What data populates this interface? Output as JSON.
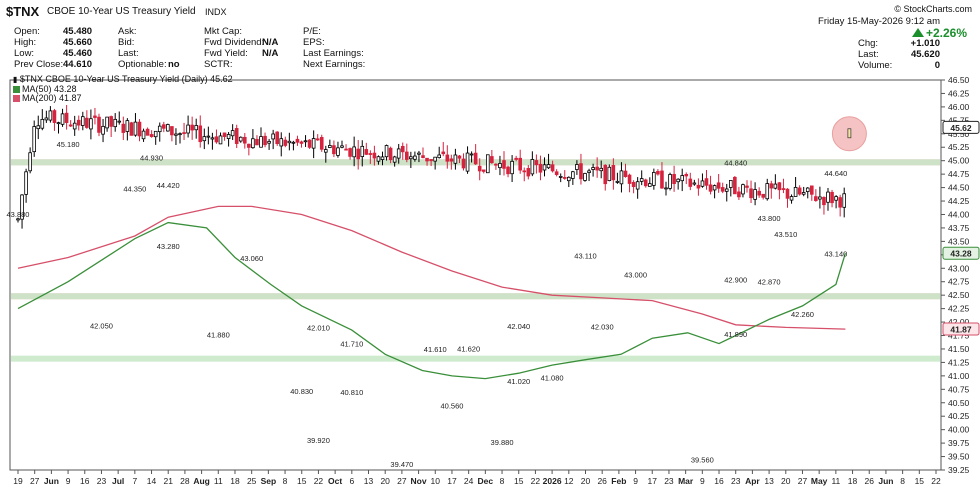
{
  "header": {
    "symbol": "$TNX",
    "name": "CBOE 10-Year US Treasury Yield",
    "exchange": "INDX",
    "source": "© StockCharts.com",
    "date": "Friday  15-May-2026  9:12 am",
    "quote": [
      {
        "label": "Open:",
        "value": "45.480"
      },
      {
        "label": "High:",
        "value": "45.660"
      },
      {
        "label": "Low:",
        "value": "45.460"
      },
      {
        "label": "Prev Close:",
        "value": "44.610"
      }
    ],
    "bidask": [
      {
        "label": "Ask:",
        "value": ""
      },
      {
        "label": "Bid:",
        "value": ""
      },
      {
        "label": "Last:",
        "value": ""
      },
      {
        "label": "Optionable:",
        "value": "no"
      }
    ],
    "fund": [
      {
        "label": "Mkt Cap:",
        "value": ""
      },
      {
        "label": "Fwd Dividend:",
        "value": "N/A"
      },
      {
        "label": "Fwd Yield:",
        "value": "N/A"
      },
      {
        "label": "SCTR:",
        "value": ""
      }
    ],
    "earn": [
      "P/E:",
      "EPS:",
      "Last Earnings:",
      "Next Earnings:"
    ],
    "change_pct": "+2.26%",
    "right": [
      {
        "label": "Chg:",
        "value": "+1.010"
      },
      {
        "label": "Last:",
        "value": "45.620"
      },
      {
        "label": "Volume:",
        "value": "0"
      }
    ]
  },
  "legend": {
    "main": "$TNX CBOE 10-Year US Treasury Yield (Daily) 45.62",
    "ma50": "MA(50) 43.28",
    "ma200": "MA(200) 41.87"
  },
  "colors": {
    "up": "#000000",
    "down": "#d6233e",
    "ma50": "#3a8f3a",
    "ma200": "#d6506a",
    "hband": "#f2b8bf",
    "gband": "#c6e8c6"
  },
  "chart_data": {
    "type": "candlestick",
    "ylim": [
      39.25,
      46.5
    ],
    "y_ticks": [
      "39.25",
      "39.50",
      "39.75",
      "40.00",
      "40.25",
      "40.50",
      "40.75",
      "41.00",
      "41.25",
      "41.50",
      "41.75",
      "42.00",
      "42.25",
      "42.50",
      "42.75",
      "43.00",
      "43.25",
      "43.50",
      "43.75",
      "44.00",
      "44.25",
      "44.50",
      "44.75",
      "45.00",
      "45.25",
      "45.50",
      "45.75",
      "46.00",
      "46.25",
      "46.50"
    ],
    "x_ticks": [
      "19",
      "27",
      "Jun",
      "9",
      "16",
      "23",
      "Jul",
      "7",
      "14",
      "21",
      "28",
      "Aug",
      "11",
      "18",
      "25",
      "Sep",
      "8",
      "15",
      "22",
      "Oct",
      "6",
      "13",
      "20",
      "27",
      "Nov",
      "10",
      "17",
      "24",
      "Dec",
      "8",
      "15",
      "22",
      "2026",
      "12",
      "20",
      "26",
      "Feb",
      "9",
      "17",
      "23",
      "Mar",
      "9",
      "16",
      "23",
      "Apr",
      "13",
      "20",
      "27",
      "May",
      "11",
      "18",
      "26",
      "Jun",
      "8",
      "15",
      "22"
    ],
    "bold_ticks": [
      "Jun",
      "Jul",
      "Aug",
      "Sep",
      "Oct",
      "Nov",
      "Dec",
      "2026",
      "Feb",
      "Mar",
      "Apr",
      "May",
      "Jun"
    ],
    "last_close": "45.62",
    "ma50_last": "43.28",
    "ma200_last": "41.87",
    "horizontal_lines": [
      {
        "value": 44.97,
        "color": "red"
      },
      {
        "value": 42.48,
        "color": "red"
      },
      {
        "value": 42.48,
        "color": "green"
      },
      {
        "value": 41.32,
        "color": "green"
      },
      {
        "value": 44.97,
        "color": "green"
      }
    ],
    "price_labels": [
      {
        "text": "45.180",
        "x": "Jun 9",
        "y": 45.18
      },
      {
        "text": "43.880",
        "x": "May 19",
        "y": 43.88
      },
      {
        "text": "42.050",
        "x": "Jun 23",
        "y": 42.05
      },
      {
        "text": "44.930",
        "x": "Jul 14",
        "y": 44.93
      },
      {
        "text": "44.350",
        "x": "Jul 7",
        "y": 44.35
      },
      {
        "text": "44.420",
        "x": "Jul 21",
        "y": 44.42
      },
      {
        "text": "43.280",
        "x": "Jul 21",
        "y": 43.28
      },
      {
        "text": "43.060",
        "x": "Aug 25",
        "y": 43.06
      },
      {
        "text": "41.880",
        "x": "Aug 11",
        "y": 41.88
      },
      {
        "text": "42.010",
        "x": "Sep 22",
        "y": 42.01
      },
      {
        "text": "41.710",
        "x": "Oct 6",
        "y": 41.71
      },
      {
        "text": "40.830",
        "x": "Sep 15",
        "y": 40.83
      },
      {
        "text": "40.810",
        "x": "Oct 6",
        "y": 40.81
      },
      {
        "text": "39.920",
        "x": "Sep 22",
        "y": 39.92
      },
      {
        "text": "39.470",
        "x": "Oct 27",
        "y": 39.47
      },
      {
        "text": "41.610",
        "x": "Nov 10",
        "y": 41.61
      },
      {
        "text": "41.620",
        "x": "Nov 24",
        "y": 41.62
      },
      {
        "text": "40.560",
        "x": "Nov 17",
        "y": 40.56
      },
      {
        "text": "39.880",
        "x": "Dec 8",
        "y": 39.88
      },
      {
        "text": "42.040",
        "x": "Dec 15",
        "y": 42.04
      },
      {
        "text": "41.020",
        "x": "Dec 15",
        "y": 41.02
      },
      {
        "text": "41.080",
        "x": "2026",
        "y": 41.08
      },
      {
        "text": "43.110",
        "x": "Jan 20",
        "y": 43.11
      },
      {
        "text": "43.000",
        "x": "Feb 9",
        "y": 43.0
      },
      {
        "text": "42.030",
        "x": "Jan 26",
        "y": 42.03
      },
      {
        "text": "39.560",
        "x": "Mar 9",
        "y": 39.56
      },
      {
        "text": "44.840",
        "x": "Mar 23",
        "y": 44.84
      },
      {
        "text": "42.900",
        "x": "Mar 23",
        "y": 42.9
      },
      {
        "text": "41.890",
        "x": "Mar 23",
        "y": 41.89
      },
      {
        "text": "43.800",
        "x": "Apr 13",
        "y": 43.8
      },
      {
        "text": "43.510",
        "x": "Apr 20",
        "y": 43.51
      },
      {
        "text": "42.870",
        "x": "Apr 13",
        "y": 42.87
      },
      {
        "text": "42.260",
        "x": "Apr 27",
        "y": 42.26
      },
      {
        "text": "44.640",
        "x": "May 11",
        "y": 44.64
      },
      {
        "text": "43.140",
        "x": "May 11",
        "y": 43.14
      }
    ],
    "pivots": [
      [
        "May 19",
        43.9
      ],
      [
        "May 27",
        45.8
      ],
      [
        "Jun 2",
        44.2
      ],
      [
        "Jun 9",
        45.15
      ],
      [
        "Jun 16",
        43.3
      ],
      [
        "Jun 23",
        42.1
      ],
      [
        "Jun 30",
        43.9
      ],
      [
        "Jul 7",
        44.4
      ],
      [
        "Jul 14",
        44.9
      ],
      [
        "Jul 21",
        43.4
      ],
      [
        "Jul 28",
        44.0
      ],
      [
        "Aug 4",
        42.0
      ],
      [
        "Aug 11",
        42.9
      ],
      [
        "Aug 18",
        43.1
      ],
      [
        "Aug 25",
        42.9
      ],
      [
        "Sep 2",
        41.9
      ],
      [
        "Sep 8",
        40.3
      ],
      [
        "Sep 15",
        40.0
      ],
      [
        "Sep 22",
        41.4
      ],
      [
        "Sep 29",
        41.8
      ],
      [
        "Oct 6",
        40.9
      ],
      [
        "Oct 13",
        40.2
      ],
      [
        "Oct 20",
        39.6
      ],
      [
        "Oct 27",
        39.7
      ],
      [
        "Nov 3",
        41.5
      ],
      [
        "Nov 10",
        41.0
      ],
      [
        "Nov 17",
        40.6
      ],
      [
        "Nov 24",
        41.6
      ],
      [
        "Dec 1",
        40.1
      ],
      [
        "Dec 8",
        40.8
      ],
      [
        "Dec 15",
        41.9
      ],
      [
        "Dec 22",
        41.3
      ],
      [
        "2026",
        41.6
      ],
      [
        "Jan 12",
        41.5
      ],
      [
        "Jan 20",
        42.3
      ],
      [
        "Jan 26",
        43.0
      ],
      [
        "Feb 2",
        42.4
      ],
      [
        "Feb 9",
        42.6
      ],
      [
        "Feb 17",
        41.6
      ],
      [
        "Feb 23",
        40.8
      ],
      [
        "Mar 2",
        39.7
      ],
      [
        "Mar 9",
        40.8
      ],
      [
        "Mar 16",
        41.6
      ],
      [
        "Mar 23",
        44.5
      ],
      [
        "Apr 6",
        43.2
      ],
      [
        "Apr 13",
        43.7
      ],
      [
        "Apr 20",
        43.0
      ],
      [
        "Apr 27",
        42.5
      ],
      [
        "May 4",
        44.0
      ],
      [
        "May 11",
        44.9
      ],
      [
        "May 15",
        45.62
      ]
    ],
    "ma50": [
      [
        "May 19",
        42.25
      ],
      [
        "Jun 9",
        42.75
      ],
      [
        "Jun 23",
        43.15
      ],
      [
        "Jul 7",
        43.55
      ],
      [
        "Jul 21",
        43.85
      ],
      [
        "Aug 4",
        43.75
      ],
      [
        "Aug 18",
        43.2
      ],
      [
        "Sep 2",
        42.7
      ],
      [
        "Sep 15",
        42.3
      ],
      [
        "Oct 6",
        41.85
      ],
      [
        "Oct 20",
        41.4
      ],
      [
        "Nov 3",
        41.1
      ],
      [
        "Nov 17",
        41.0
      ],
      [
        "Dec 1",
        40.95
      ],
      [
        "Dec 15",
        41.05
      ],
      [
        "2026",
        41.2
      ],
      [
        "Jan 20",
        41.3
      ],
      [
        "Feb 2",
        41.4
      ],
      [
        "Feb 17",
        41.7
      ],
      [
        "Mar 2",
        41.8
      ],
      [
        "Mar 16",
        41.6
      ],
      [
        "Mar 23",
        41.75
      ],
      [
        "Apr 13",
        42.05
      ],
      [
        "Apr 27",
        42.3
      ],
      [
        "May 11",
        42.7
      ],
      [
        "May 15",
        43.28
      ]
    ],
    "ma200": [
      [
        "May 19",
        43.0
      ],
      [
        "Jun 9",
        43.2
      ],
      [
        "Jul 7",
        43.6
      ],
      [
        "Jul 21",
        43.95
      ],
      [
        "Aug 11",
        44.15
      ],
      [
        "Aug 25",
        44.15
      ],
      [
        "Sep 15",
        44.0
      ],
      [
        "Oct 6",
        43.7
      ],
      [
        "Oct 27",
        43.3
      ],
      [
        "Nov 17",
        42.95
      ],
      [
        "Dec 8",
        42.65
      ],
      [
        "2026",
        42.5
      ],
      [
        "Jan 26",
        42.45
      ],
      [
        "Feb 17",
        42.4
      ],
      [
        "Mar 9",
        42.15
      ],
      [
        "Mar 23",
        41.95
      ],
      [
        "Apr 20",
        41.9
      ],
      [
        "May 15",
        41.87
      ]
    ]
  }
}
